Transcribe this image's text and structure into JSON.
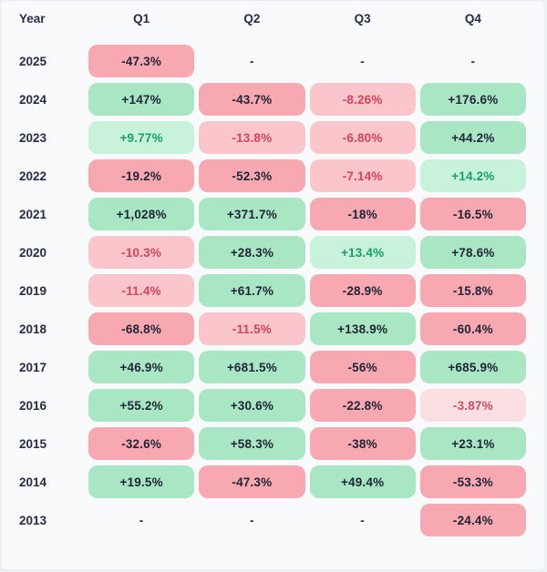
{
  "table": {
    "columns": [
      "Year",
      "Q1",
      "Q2",
      "Q3",
      "Q4"
    ],
    "rows": [
      {
        "year": "2025",
        "cells": [
          {
            "text": "-47.3%",
            "tone": "neg"
          },
          {
            "text": "-",
            "tone": "none"
          },
          {
            "text": "-",
            "tone": "none"
          },
          {
            "text": "-",
            "tone": "none"
          }
        ]
      },
      {
        "year": "2024",
        "cells": [
          {
            "text": "+147%",
            "tone": "pos"
          },
          {
            "text": "-43.7%",
            "tone": "neg"
          },
          {
            "text": "-8.26%",
            "tone": "neg-light"
          },
          {
            "text": "+176.6%",
            "tone": "pos"
          }
        ]
      },
      {
        "year": "2023",
        "cells": [
          {
            "text": "+9.77%",
            "tone": "pos-light"
          },
          {
            "text": "-13.8%",
            "tone": "neg-light"
          },
          {
            "text": "-6.80%",
            "tone": "neg-light"
          },
          {
            "text": "+44.2%",
            "tone": "pos"
          }
        ]
      },
      {
        "year": "2022",
        "cells": [
          {
            "text": "-19.2%",
            "tone": "neg"
          },
          {
            "text": "-52.3%",
            "tone": "neg"
          },
          {
            "text": "-7.14%",
            "tone": "neg-light"
          },
          {
            "text": "+14.2%",
            "tone": "pos-light"
          }
        ]
      },
      {
        "year": "2021",
        "cells": [
          {
            "text": "+1,028%",
            "tone": "pos"
          },
          {
            "text": "+371.7%",
            "tone": "pos"
          },
          {
            "text": "-18%",
            "tone": "neg"
          },
          {
            "text": "-16.5%",
            "tone": "neg"
          }
        ]
      },
      {
        "year": "2020",
        "cells": [
          {
            "text": "-10.3%",
            "tone": "neg-light"
          },
          {
            "text": "+28.3%",
            "tone": "pos"
          },
          {
            "text": "+13.4%",
            "tone": "pos-light"
          },
          {
            "text": "+78.6%",
            "tone": "pos"
          }
        ]
      },
      {
        "year": "2019",
        "cells": [
          {
            "text": "-11.4%",
            "tone": "neg-light"
          },
          {
            "text": "+61.7%",
            "tone": "pos"
          },
          {
            "text": "-28.9%",
            "tone": "neg"
          },
          {
            "text": "-15.8%",
            "tone": "neg"
          }
        ]
      },
      {
        "year": "2018",
        "cells": [
          {
            "text": "-68.8%",
            "tone": "neg"
          },
          {
            "text": "-11.5%",
            "tone": "neg-light"
          },
          {
            "text": "+138.9%",
            "tone": "pos"
          },
          {
            "text": "-60.4%",
            "tone": "neg"
          }
        ]
      },
      {
        "year": "2017",
        "cells": [
          {
            "text": "+46.9%",
            "tone": "pos"
          },
          {
            "text": "+681.5%",
            "tone": "pos"
          },
          {
            "text": "-56%",
            "tone": "neg"
          },
          {
            "text": "+685.9%",
            "tone": "pos"
          }
        ]
      },
      {
        "year": "2016",
        "cells": [
          {
            "text": "+55.2%",
            "tone": "pos"
          },
          {
            "text": "+30.6%",
            "tone": "pos"
          },
          {
            "text": "-22.8%",
            "tone": "neg"
          },
          {
            "text": "-3.87%",
            "tone": "neg-xlight"
          }
        ]
      },
      {
        "year": "2015",
        "cells": [
          {
            "text": "-32.6%",
            "tone": "neg"
          },
          {
            "text": "+58.3%",
            "tone": "pos"
          },
          {
            "text": "-38%",
            "tone": "neg"
          },
          {
            "text": "+23.1%",
            "tone": "pos"
          }
        ]
      },
      {
        "year": "2014",
        "cells": [
          {
            "text": "+19.5%",
            "tone": "pos"
          },
          {
            "text": "-47.3%",
            "tone": "neg"
          },
          {
            "text": "+49.4%",
            "tone": "pos"
          },
          {
            "text": "-53.3%",
            "tone": "neg"
          }
        ]
      },
      {
        "year": "2013",
        "cells": [
          {
            "text": "-",
            "tone": "none"
          },
          {
            "text": "-",
            "tone": "none"
          },
          {
            "text": "-",
            "tone": "none"
          },
          {
            "text": "-24.4%",
            "tone": "neg"
          }
        ]
      }
    ]
  },
  "colors": {
    "background": "#f9fafc",
    "border": "#e9edf3",
    "header_text": "#272c45",
    "year_text": "#272c45",
    "dash_text": "#272c45",
    "pos_bg": "#a9e6c4",
    "pos_text": "#1f2437",
    "pos_light_bg": "#c9f2da",
    "pos_light_text": "#17a06c",
    "neg_bg": "#f8a8b0",
    "neg_text": "#1f2437",
    "neg_light_bg": "#fac6cc",
    "neg_light_text": "#d6435a",
    "neg_xlight_bg": "#fbdfe2",
    "neg_xlight_text": "#d04c61"
  },
  "chart_data": {
    "type": "table",
    "title": "",
    "subtitle": "",
    "columns": [
      "Year",
      "Q1",
      "Q2",
      "Q3",
      "Q4"
    ],
    "rows": [
      [
        "2025",
        "-47.3%",
        "-",
        "-",
        "-"
      ],
      [
        "2024",
        "+147%",
        "-43.7%",
        "-8.26%",
        "+176.6%"
      ],
      [
        "2023",
        "+9.77%",
        "-13.8%",
        "-6.80%",
        "+44.2%"
      ],
      [
        "2022",
        "-19.2%",
        "-52.3%",
        "-7.14%",
        "+14.2%"
      ],
      [
        "2021",
        "+1,028%",
        "+371.7%",
        "-18%",
        "-16.5%"
      ],
      [
        "2020",
        "-10.3%",
        "+28.3%",
        "+13.4%",
        "+78.6%"
      ],
      [
        "2019",
        "-11.4%",
        "+61.7%",
        "-28.9%",
        "-15.8%"
      ],
      [
        "2018",
        "-68.8%",
        "-11.5%",
        "+138.9%",
        "-60.4%"
      ],
      [
        "2017",
        "+46.9%",
        "+681.5%",
        "-56%",
        "+685.9%"
      ],
      [
        "2016",
        "+55.2%",
        "+30.6%",
        "-22.8%",
        "-3.87%"
      ],
      [
        "2015",
        "-32.6%",
        "+58.3%",
        "-38%",
        "+23.1%"
      ],
      [
        "2014",
        "+19.5%",
        "-47.3%",
        "+49.4%",
        "-53.3%"
      ],
      [
        "2013",
        "-",
        "-",
        "-",
        "-24.4%"
      ]
    ],
    "notes": "Heatmap-styled quarterly returns table; green cells = positive returns, red/pink cells = negative returns; lighter shades for smaller magnitudes; '-' = no data."
  }
}
